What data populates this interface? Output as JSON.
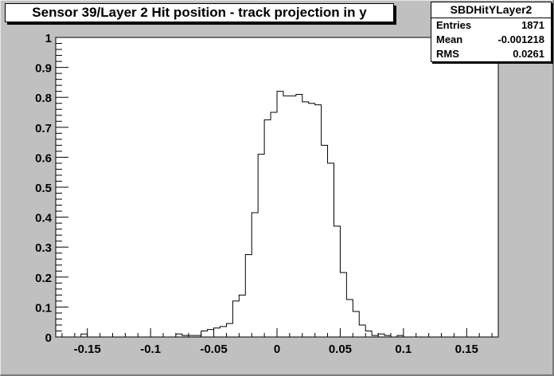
{
  "title": "Sensor 39/Layer 2 Hit position - track projection in y",
  "stats": {
    "name": "SBDHitYLayer2",
    "rows": [
      {
        "key": "Entries",
        "value": "1871"
      },
      {
        "key": "Mean",
        "value": "-0.001218"
      },
      {
        "key": "RMS",
        "value": "0.0261"
      }
    ]
  },
  "colors": {
    "background": "#c0c0c0",
    "plot_bg": "#ffffff",
    "line": "#000000"
  },
  "chart_data": {
    "type": "bar",
    "title": "Sensor 39/Layer 2 Hit position - track projection in y",
    "xlabel": "",
    "ylabel": "",
    "xlim": [
      -0.175,
      0.175
    ],
    "ylim": [
      0,
      1
    ],
    "bin_width": 0.005,
    "x_ticks": [
      -0.15,
      -0.1,
      -0.05,
      0,
      0.05,
      0.1,
      0.15
    ],
    "x_tick_labels": [
      "-0.15",
      "-0.1",
      "-0.05",
      "0",
      "0.05",
      "0.1",
      "0.15"
    ],
    "y_ticks": [
      0,
      0.1,
      0.2,
      0.3,
      0.4,
      0.5,
      0.6,
      0.7,
      0.8,
      0.9,
      1
    ],
    "y_tick_labels": [
      "0",
      "0.1",
      "0.2",
      "0.3",
      "0.4",
      "0.5",
      "0.6",
      "0.7",
      "0.8",
      "0.9",
      "1"
    ],
    "grid": false,
    "legend": "top-right",
    "values": [
      0,
      0,
      0,
      0,
      0.01,
      0,
      0,
      0,
      0,
      0,
      0,
      0,
      0,
      0,
      0,
      0,
      0,
      0,
      0,
      0.01,
      0.005,
      0.005,
      0.005,
      0.02,
      0.025,
      0.03,
      0.035,
      0.045,
      0.12,
      0.14,
      0.275,
      0.415,
      0.61,
      0.725,
      0.75,
      0.82,
      0.805,
      0.805,
      0.81,
      0.785,
      0.78,
      0.775,
      0.64,
      0.58,
      0.37,
      0.215,
      0.125,
      0.085,
      0.04,
      0.02,
      0.005,
      0.01,
      0.005,
      0,
      0.005,
      0,
      0,
      0,
      0,
      0,
      0,
      0,
      0,
      0,
      0,
      0,
      0,
      0,
      0,
      0
    ]
  }
}
